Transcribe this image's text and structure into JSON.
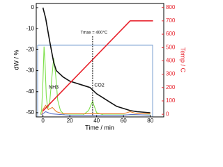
{
  "chart_data": {
    "type": "line",
    "xlabel": "Time / min",
    "ylabel": "dW / %",
    "y2label": "Temp / C",
    "xlim": [
      -5,
      90
    ],
    "xticks": [
      0,
      20,
      40,
      60,
      80
    ],
    "ylim": [
      -52,
      2
    ],
    "yticks": [
      0,
      -10,
      -20,
      -30,
      -40,
      -50
    ],
    "y2lim": [
      -20,
      830
    ],
    "y2ticks": [
      0,
      100,
      200,
      300,
      400,
      500,
      600,
      700,
      800
    ],
    "y2color": "#e8212b",
    "series": [
      {
        "color": "#7ee04b",
        "x": [
          -2,
          -1,
          0,
          0.8,
          1.5,
          2.5,
          3.5,
          5,
          6.5,
          8,
          9.5,
          11,
          13,
          16,
          30,
          34,
          36,
          37,
          38,
          40,
          45,
          60,
          80
        ],
        "values": [
          -51,
          -49,
          -35,
          -18.5,
          -25,
          -42,
          -48,
          -45,
          -34,
          -24,
          -32,
          -44,
          -49,
          -51,
          -51,
          -49,
          -46,
          -44.5,
          -46.5,
          -50,
          -51,
          -51,
          -51
        ]
      },
      {
        "color": "#e8822e",
        "x": [
          -1,
          0,
          2,
          4,
          7,
          10,
          15,
          60,
          65,
          70,
          80
        ],
        "values": [
          -51,
          -48.5,
          -46.5,
          -48.5,
          -47.5,
          -49.5,
          -50.5,
          -50.5,
          -49.5,
          -50.5,
          -50.5
        ]
      },
      {
        "color": "#5a6fc7",
        "x": [
          -1,
          2,
          6,
          20,
          60,
          66,
          80
        ],
        "values": [
          -51,
          -49.5,
          -50.5,
          -51.2,
          -51.2,
          -50.8,
          -51.2
        ]
      },
      {
        "color": "#111111",
        "x": [
          0,
          2,
          5,
          8,
          10,
          15,
          20,
          30,
          35,
          40,
          45,
          50,
          55,
          60,
          65,
          70,
          80
        ],
        "values": [
          0,
          -5,
          -16,
          -26,
          -30,
          -33,
          -35,
          -37,
          -38,
          -41,
          -43,
          -45,
          -47,
          -48,
          -49,
          -49.5,
          -50
        ]
      },
      {
        "color": "#e8212b",
        "axis": "y2",
        "x": [
          0,
          65,
          82
        ],
        "values": [
          25,
          700,
          700
        ]
      }
    ],
    "annotations": [
      {
        "text": "Tmax = 400°C",
        "x": 37
      },
      {
        "text": "NH3"
      },
      {
        "text": "CO2"
      }
    ]
  }
}
